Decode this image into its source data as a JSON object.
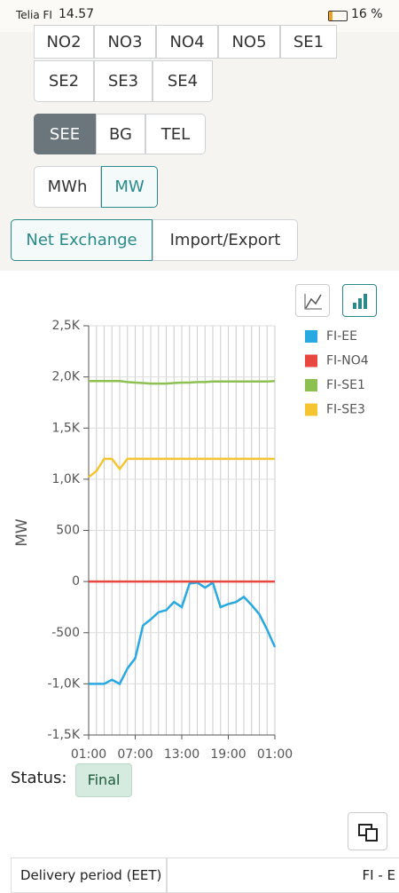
{
  "status_bar": {
    "carrier": "Telia FI",
    "time": "14.57",
    "battery": "16 %"
  },
  "filters": {
    "areas_row1": [
      "NO2",
      "NO3",
      "NO4",
      "NO5",
      "SE1"
    ],
    "areas_row2": [
      "SE2",
      "SE3",
      "SE4"
    ],
    "regions": [
      "SEE",
      "BG",
      "TEL"
    ],
    "units": [
      "MWh",
      "MW"
    ],
    "views": [
      "Net Exchange",
      "Import/Export"
    ]
  },
  "chart_data": {
    "type": "line",
    "ylabel": "MW",
    "categories": [
      "01:00",
      null,
      null,
      null,
      null,
      null,
      "07:00",
      null,
      null,
      null,
      null,
      null,
      "13:00",
      null,
      null,
      null,
      null,
      null,
      "19:00",
      null,
      null,
      null,
      null,
      null,
      "01:00"
    ],
    "series": [
      {
        "name": "FI-EE",
        "color": "#29a9e1",
        "values": [
          -1000,
          -1000,
          -1000,
          -960,
          -1000,
          -850,
          -750,
          -430,
          -370,
          -300,
          -280,
          -200,
          -250,
          -20,
          -10,
          -60,
          -10,
          -250,
          -220,
          -200,
          -150,
          -230,
          -320,
          -470,
          -640
        ]
      },
      {
        "name": "FI-NO4",
        "color": "#e8473f",
        "values": [
          0,
          0,
          0,
          0,
          0,
          0,
          0,
          0,
          0,
          0,
          0,
          0,
          0,
          0,
          0,
          0,
          0,
          0,
          0,
          0,
          0,
          0,
          0,
          0,
          0
        ]
      },
      {
        "name": "FI-SE1",
        "color": "#8cc152",
        "values": [
          1960,
          1960,
          1960,
          1960,
          1960,
          1950,
          1945,
          1940,
          1935,
          1935,
          1935,
          1940,
          1945,
          1945,
          1950,
          1950,
          1955,
          1955,
          1955,
          1955,
          1955,
          1955,
          1955,
          1955,
          1960
        ]
      },
      {
        "name": "FI-SE3",
        "color": "#f5c431",
        "values": [
          1020,
          1080,
          1200,
          1200,
          1100,
          1200,
          1200,
          1200,
          1200,
          1200,
          1200,
          1200,
          1200,
          1200,
          1200,
          1200,
          1200,
          1200,
          1200,
          1200,
          1200,
          1200,
          1200,
          1200,
          1200
        ]
      }
    ],
    "ylim": [
      -1500,
      2500
    ],
    "yticks": [
      {
        "value": -1500,
        "label": "-1,5K"
      },
      {
        "value": -1000,
        "label": "-1,0K"
      },
      -500,
      0,
      500,
      {
        "value": 1000,
        "label": "1,0K"
      },
      {
        "value": 1500,
        "label": "1,5K"
      },
      {
        "value": 2000,
        "label": "2,0K"
      },
      {
        "value": 2500,
        "label": "2,5K"
      }
    ],
    "grid": true,
    "legend": "right"
  },
  "status": {
    "label": "Status:",
    "value": "Final"
  },
  "table": {
    "headers": [
      "Delivery period (EET)",
      "FI - E"
    ]
  }
}
